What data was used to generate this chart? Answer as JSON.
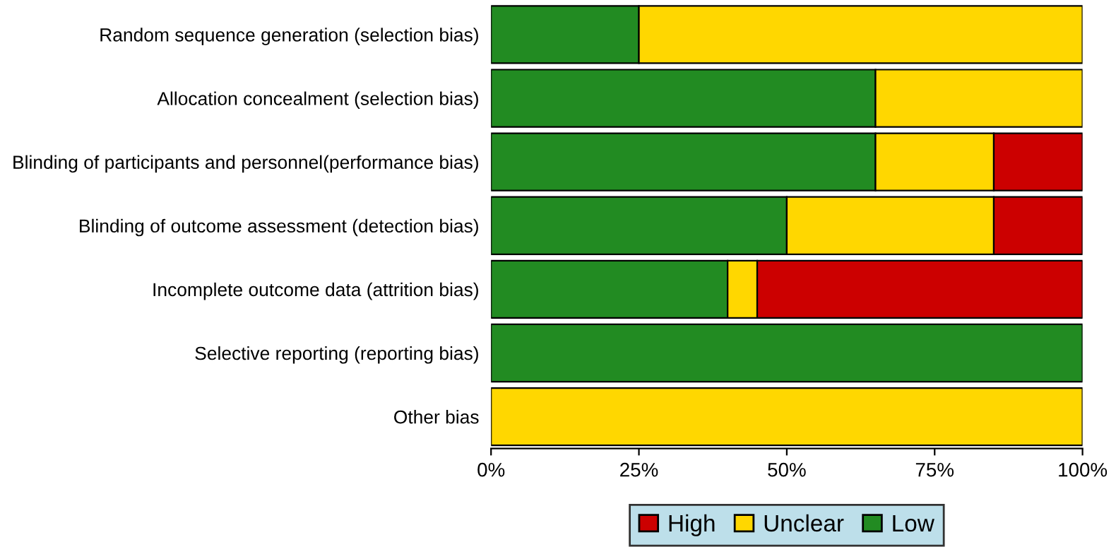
{
  "chart_data": {
    "type": "bar",
    "orientation": "horizontal",
    "stacked": true,
    "categories": [
      "Random sequence generation (selection bias)",
      "Allocation concealment (selection bias)",
      "Blinding of participants and personnel(performance bias)",
      "Blinding of outcome assessment (detection bias)",
      "Incomplete outcome data (attrition bias)",
      "Selective reporting (reporting bias)",
      "Other bias"
    ],
    "series": [
      {
        "name": "Low",
        "color": "#228b22",
        "values": [
          25,
          65,
          65,
          50,
          40,
          100,
          0
        ]
      },
      {
        "name": "Unclear",
        "color": "#ffd700",
        "values": [
          75,
          35,
          20,
          35,
          5,
          0,
          100
        ]
      },
      {
        "name": "High",
        "color": "#cc0000",
        "values": [
          0,
          0,
          15,
          15,
          55,
          0,
          0
        ]
      }
    ],
    "xlim": [
      0,
      100
    ],
    "xticks": [
      {
        "value": 0,
        "label": "0%"
      },
      {
        "value": 25,
        "label": "25%"
      },
      {
        "value": 50,
        "label": "50%"
      },
      {
        "value": 75,
        "label": "75%"
      },
      {
        "value": 100,
        "label": "100%"
      }
    ],
    "legend": "bottom",
    "grid": false
  }
}
